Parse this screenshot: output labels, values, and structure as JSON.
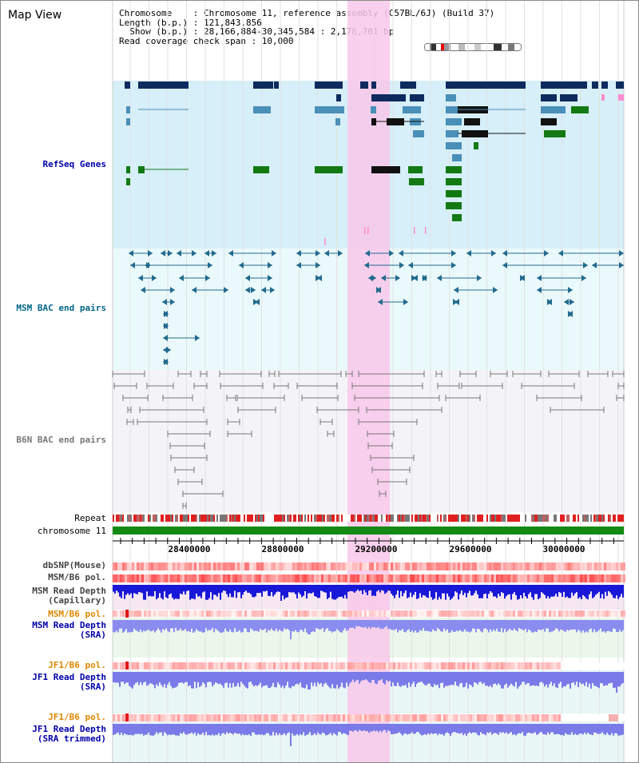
{
  "view_title": "Map View",
  "info": {
    "chromosome_line": "Chromosome    : Chromosome 11, reference assembly (C57BL/6J) (Build 37)",
    "length_line": "Length (b.p.) : 121,843,856",
    "show_line": "  Show (b.p.) : 28,166,884-30,345,584 : 2,178,701 bp",
    "coverage_line": "Read coverage check span : 10,000"
  },
  "tracks": {
    "refseq": "RefSeq Genes",
    "msm_bac": "MSM BAC end pairs",
    "b6n_bac": "B6N BAC end pairs",
    "repeat": "Repeat",
    "chromosome": "chromosome 11",
    "dbsnp": "dbSNP(Mouse)",
    "msm_b6_pol": "MSM/B6 pol.",
    "msm_read_depth_cap": "MSM Read Depth\n(Capillary)",
    "msm_b6_pol_2": "MSM/B6 pol.",
    "msm_read_depth_sra": "MSM Read Depth\n(SRA)",
    "jf1_b6_pol": "JF1/B6 pol.",
    "jf1_read_depth_sra": "JF1 Read Depth\n(SRA)",
    "jf1_b6_pol_2": "JF1/B6 pol.",
    "jf1_read_depth_trim": "JF1 Read Depth\n(SRA trimmed)"
  },
  "axis": {
    "ticks": [
      "28400000",
      "28800000",
      "29200000",
      "29600000",
      "30000000"
    ]
  },
  "colors": {
    "refseq_dark": "#0d2b5e",
    "refseq_mid": "#4a8fb8",
    "refseq_green": "#137a13",
    "msm_bac": "#236b8e",
    "b6n_bac": "#777777",
    "highlight": "#f8c8ea",
    "label_blue": "#0000aa",
    "label_teal": "#006688",
    "label_orange": "#dd8800"
  }
}
